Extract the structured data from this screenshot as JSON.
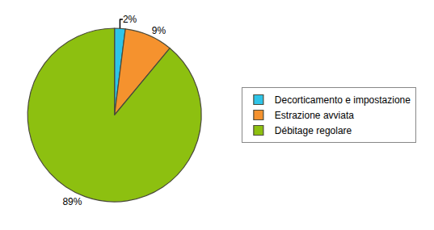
{
  "chart_data": {
    "type": "pie",
    "categories": [
      "Decorticamento e impostazione",
      "Estrazione avviata",
      "Débitage regolare"
    ],
    "values": [
      2,
      9,
      89
    ],
    "value_labels": [
      "2%",
      "9%",
      "89%"
    ],
    "colors": [
      "#2ec4e8",
      "#f5922e",
      "#8dc010"
    ],
    "data_labels": true,
    "legend": "right"
  }
}
